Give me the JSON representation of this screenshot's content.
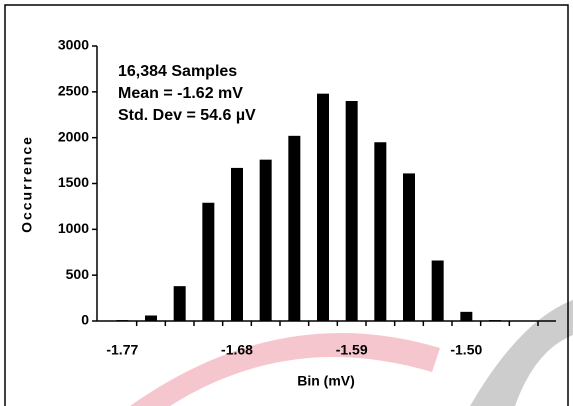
{
  "chart_data": {
    "type": "bar",
    "x_label": "Bin (mV)",
    "y_label": "Occurrence",
    "annotations": [
      "16,384 Samples",
      "Mean = -1.62 mV",
      "Std. Dev = 54.6 µV"
    ],
    "categories": [
      "-1.77",
      null,
      null,
      null,
      "-1.68",
      null,
      null,
      null,
      "-1.59",
      null,
      null,
      null,
      "-1.50",
      null,
      null
    ],
    "values": [
      10,
      60,
      380,
      1290,
      1670,
      1760,
      2020,
      2480,
      2400,
      1950,
      1610,
      660,
      100,
      10,
      5
    ],
    "color": "#000000",
    "ylim": [
      0,
      3000
    ],
    "yticks": [
      0,
      500,
      1000,
      1500,
      2000,
      2500,
      3000
    ],
    "grid": false
  }
}
